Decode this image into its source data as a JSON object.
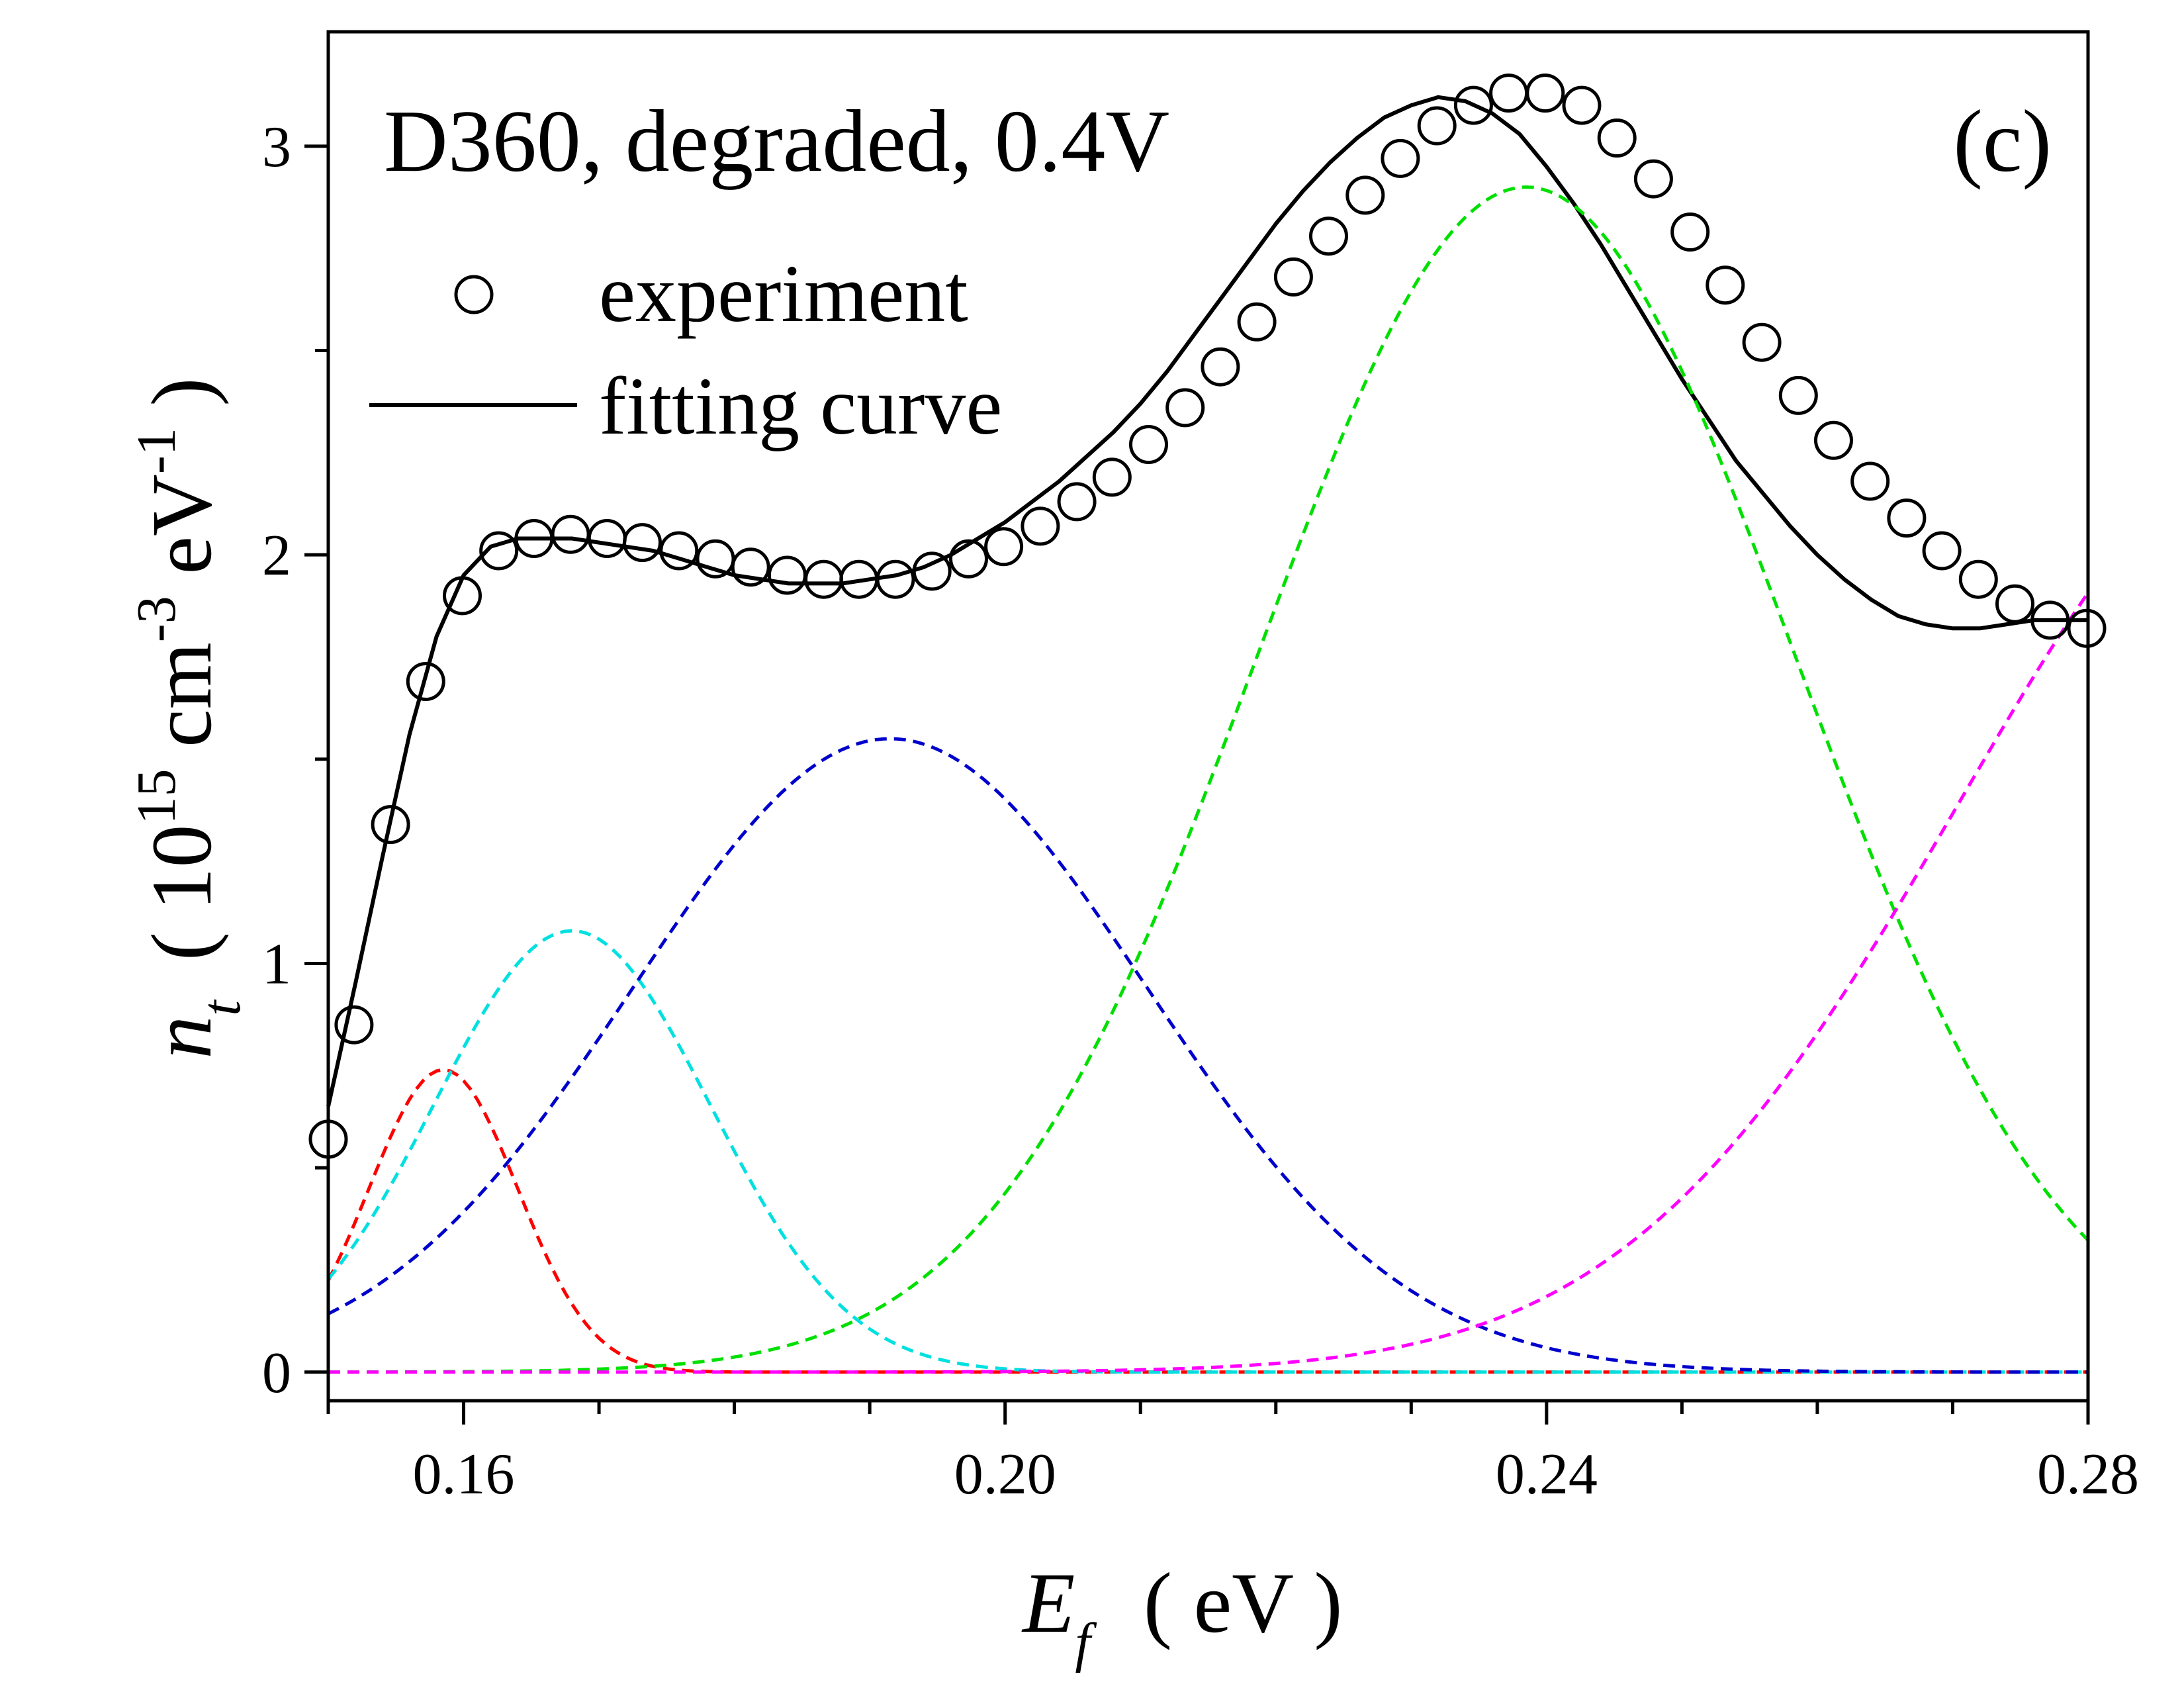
{
  "chart_data": {
    "type": "line",
    "title": "D360, degraded, 0.4V",
    "panel_label": "(c)",
    "xlabel": {
      "symbol": "E",
      "subscript": "f",
      "unit": "( eV )"
    },
    "ylabel": {
      "symbol": "n",
      "subscript": "t",
      "unit_open": "( 10",
      "unit_exp1": "15",
      "unit_mid": " cm",
      "unit_exp2": "-3",
      "unit_mid2": " eV",
      "unit_exp3": "-1",
      "unit_close": " )"
    },
    "xlim": [
      0.15,
      0.28
    ],
    "ylim": [
      -0.07,
      3.28
    ],
    "x_ticks_major": [
      0.16,
      0.2,
      0.24,
      0.28
    ],
    "x_tick_labels": [
      "0.16",
      "0.20",
      "0.24",
      "0.28"
    ],
    "x_ticks_minor": [
      0.15,
      0.17,
      0.18,
      0.19,
      0.21,
      0.22,
      0.23,
      0.25,
      0.26,
      0.27
    ],
    "y_ticks_major": [
      0,
      1,
      2,
      3
    ],
    "y_tick_labels": [
      "0",
      "1",
      "2",
      "3"
    ],
    "y_ticks_minor": [
      0.5,
      1.5,
      2.5
    ],
    "grid": false,
    "legend": {
      "placement": "top-left",
      "entries": [
        {
          "label": "experiment",
          "marker": "circle"
        },
        {
          "label": "fitting curve",
          "marker": "line"
        }
      ]
    },
    "series": [
      {
        "name": "experiment",
        "style": "markers",
        "color": "#000000",
        "x": [
          0.15,
          0.1519,
          0.1546,
          0.1572,
          0.1599,
          0.1626,
          0.1652,
          0.1679,
          0.1706,
          0.1732,
          0.1759,
          0.1786,
          0.1812,
          0.1839,
          0.1866,
          0.1892,
          0.1919,
          0.1946,
          0.1973,
          0.1999,
          0.2026,
          0.2053,
          0.2079,
          0.2106,
          0.2133,
          0.2159,
          0.2186,
          0.2213,
          0.2239,
          0.2266,
          0.2292,
          0.2319,
          0.2346,
          0.2372,
          0.2399,
          0.2426,
          0.2452,
          0.2479,
          0.2506,
          0.2532,
          0.2559,
          0.2586,
          0.2612,
          0.2639,
          0.2666,
          0.2692,
          0.2719,
          0.2746,
          0.2772,
          0.2799
        ],
        "y": [
          0.57,
          0.85,
          1.34,
          1.69,
          1.9,
          2.01,
          2.04,
          2.05,
          2.04,
          2.03,
          2.01,
          1.99,
          1.97,
          1.95,
          1.94,
          1.94,
          1.94,
          1.96,
          1.99,
          2.02,
          2.07,
          2.13,
          2.19,
          2.27,
          2.36,
          2.46,
          2.57,
          2.68,
          2.78,
          2.88,
          2.97,
          3.05,
          3.1,
          3.13,
          3.13,
          3.1,
          3.02,
          2.92,
          2.79,
          2.66,
          2.52,
          2.39,
          2.28,
          2.18,
          2.09,
          2.01,
          1.94,
          1.88,
          1.84,
          1.82
        ]
      },
      {
        "name": "fitting curve",
        "style": "solid",
        "color": "#000000",
        "x": [
          0.15,
          0.152,
          0.154,
          0.156,
          0.158,
          0.16,
          0.162,
          0.164,
          0.166,
          0.168,
          0.17,
          0.172,
          0.174,
          0.176,
          0.178,
          0.18,
          0.182,
          0.184,
          0.186,
          0.188,
          0.19,
          0.192,
          0.194,
          0.196,
          0.198,
          0.2,
          0.202,
          0.204,
          0.206,
          0.208,
          0.21,
          0.212,
          0.214,
          0.216,
          0.218,
          0.22,
          0.222,
          0.224,
          0.226,
          0.228,
          0.23,
          0.232,
          0.234,
          0.236,
          0.238,
          0.24,
          0.242,
          0.244,
          0.246,
          0.248,
          0.25,
          0.252,
          0.254,
          0.256,
          0.258,
          0.26,
          0.262,
          0.264,
          0.266,
          0.268,
          0.27,
          0.272,
          0.274,
          0.276,
          0.278,
          0.28
        ],
        "y": [
          0.65,
          0.95,
          1.26,
          1.56,
          1.8,
          1.95,
          2.02,
          2.04,
          2.04,
          2.04,
          2.03,
          2.02,
          2.01,
          1.99,
          1.97,
          1.95,
          1.94,
          1.93,
          1.93,
          1.93,
          1.94,
          1.95,
          1.97,
          2.0,
          2.04,
          2.08,
          2.13,
          2.18,
          2.24,
          2.3,
          2.37,
          2.45,
          2.54,
          2.63,
          2.72,
          2.81,
          2.89,
          2.96,
          3.02,
          3.07,
          3.1,
          3.12,
          3.11,
          3.08,
          3.03,
          2.95,
          2.86,
          2.76,
          2.65,
          2.54,
          2.43,
          2.33,
          2.23,
          2.15,
          2.07,
          2.0,
          1.94,
          1.89,
          1.85,
          1.83,
          1.82,
          1.82,
          1.83,
          1.84,
          1.84,
          1.84
        ]
      },
      {
        "name": "",
        "style": "dashed",
        "color": "#ff0000",
        "peak_x": 0.1585,
        "peak_y": 0.74,
        "sigma": 0.0055,
        "x_range": [
          0.15,
          0.28
        ]
      },
      {
        "name": "",
        "style": "dashed",
        "color": "#00e0e0",
        "peak_x": 0.168,
        "peak_y": 1.08,
        "sigma": 0.0102,
        "x_range": [
          0.15,
          0.28
        ]
      },
      {
        "name": "",
        "style": "dashed",
        "color": "#0000cc",
        "peak_x": 0.1915,
        "peak_y": 1.55,
        "sigma": 0.019,
        "x_range": [
          0.15,
          0.28
        ]
      },
      {
        "name": "",
        "style": "dashed",
        "color": "#00e000",
        "peak_x": 0.2385,
        "peak_y": 2.9,
        "sigma": 0.0198,
        "x_range": [
          0.15,
          0.28
        ]
      },
      {
        "name": "",
        "style": "dashed",
        "color": "#ff00ff",
        "peak_x": 0.295,
        "peak_y": 2.3,
        "sigma": 0.0245,
        "x_range": [
          0.15,
          0.28
        ]
      }
    ]
  }
}
